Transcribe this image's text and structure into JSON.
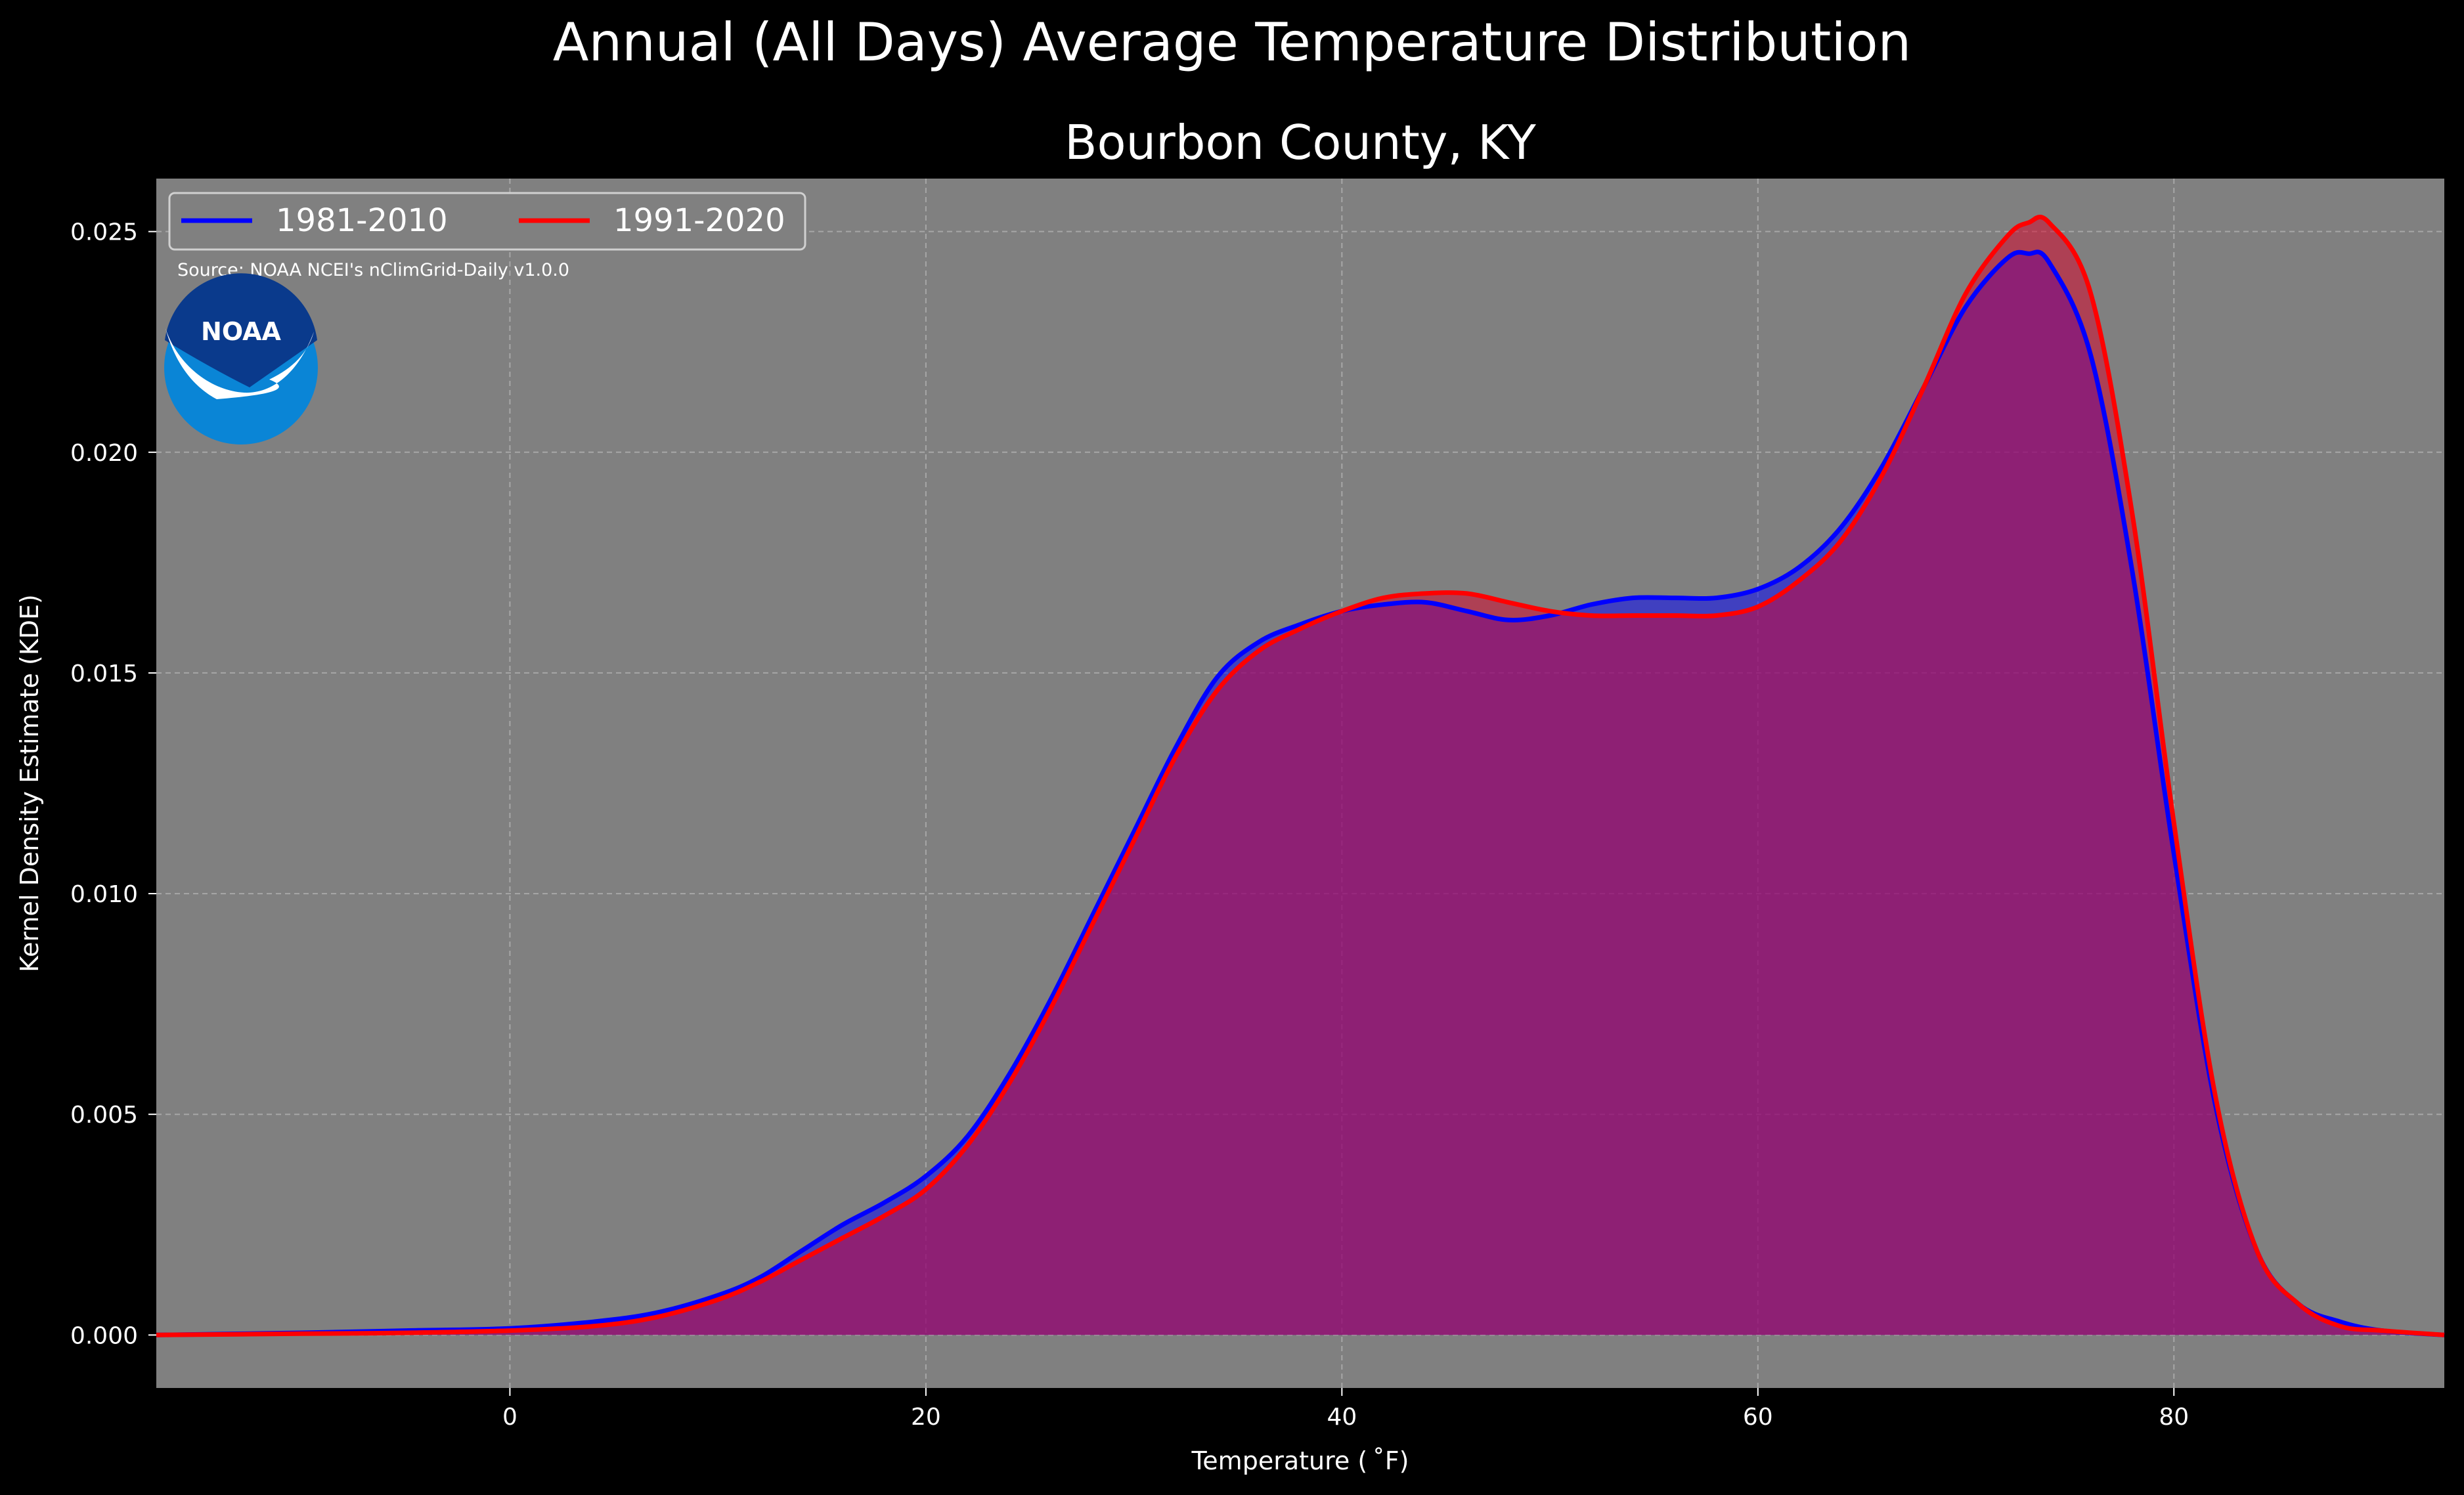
{
  "chart_data": {
    "type": "area",
    "suptitle": "Annual (All Days) Average Temperature Distribution",
    "title": "Bourbon County, KY",
    "xlabel": "Temperature ($^\\circ$F)",
    "xlabel_display": "Temperature ( ˚F)",
    "ylabel": "Kernel Density Estimate (KDE)",
    "source_note": "Source: NOAA NCEI's nClimGrid-Daily v1.0.0",
    "logo_text": "NOAA",
    "xlim": [
      -17,
      93
    ],
    "ylim": [
      -0.0012,
      0.0262
    ],
    "x_ticks": [
      0,
      20,
      40,
      60,
      80
    ],
    "x_tick_labels": [
      "0",
      "20",
      "40",
      "60",
      "80"
    ],
    "y_ticks": [
      0.0,
      0.005,
      0.01,
      0.015,
      0.02,
      0.025
    ],
    "y_tick_labels": [
      "0.000",
      "0.005",
      "0.010",
      "0.015",
      "0.020",
      "0.025"
    ],
    "grid": true,
    "legend_position": "top-left",
    "colors": {
      "background": "#000000",
      "plot_bg": "#808080",
      "series1": "#0000ff",
      "series2": "#ff0000",
      "series1_fill": "rgba(0,0,255,0.5)",
      "series2_fill": "rgba(220,0,40,0.5)",
      "grid": "#b4b4b4"
    },
    "series": [
      {
        "name": "1981-2010",
        "color": "#0000ff",
        "x": [
          -17,
          -10,
          -5,
          0,
          4,
          7,
          10,
          12,
          14,
          16,
          18,
          20,
          22,
          24,
          26,
          28,
          30,
          32,
          34,
          36,
          38,
          40,
          42,
          44,
          46,
          48,
          50,
          52,
          54,
          56,
          58,
          60,
          62,
          64,
          66,
          68,
          70,
          72,
          73,
          74,
          76,
          78,
          80,
          82,
          84,
          86,
          88,
          90,
          93
        ],
        "y": [
          0.0,
          5e-05,
          0.0001,
          0.00015,
          0.0003,
          0.0005,
          0.0009,
          0.0013,
          0.0019,
          0.0025,
          0.003,
          0.0036,
          0.0045,
          0.0059,
          0.0076,
          0.0095,
          0.0114,
          0.0133,
          0.0149,
          0.0157,
          0.0161,
          0.0164,
          0.01655,
          0.0166,
          0.0164,
          0.0162,
          0.0163,
          0.01655,
          0.0167,
          0.0167,
          0.0167,
          0.0169,
          0.0174,
          0.0183,
          0.0197,
          0.0215,
          0.0233,
          0.0244,
          0.0245,
          0.0243,
          0.0222,
          0.0173,
          0.0109,
          0.0052,
          0.0019,
          0.0007,
          0.0003,
          0.0001,
          0.0
        ]
      },
      {
        "name": "1991-2020",
        "color": "#ff0000",
        "x": [
          -17,
          -10,
          -5,
          0,
          4,
          7,
          10,
          12,
          14,
          16,
          18,
          20,
          22,
          24,
          26,
          28,
          30,
          32,
          34,
          36,
          38,
          40,
          42,
          44,
          46,
          48,
          50,
          52,
          54,
          56,
          58,
          60,
          62,
          64,
          66,
          68,
          70,
          72,
          73,
          74,
          76,
          78,
          80,
          82,
          84,
          86,
          88,
          90,
          93
        ],
        "y": [
          0.0,
          3e-05,
          5e-05,
          0.0001,
          0.0002,
          0.0004,
          0.0008,
          0.0012,
          0.0017,
          0.0022,
          0.0027,
          0.0033,
          0.0043,
          0.0057,
          0.0074,
          0.0093,
          0.0112,
          0.0131,
          0.0146,
          0.0155,
          0.016,
          0.0164,
          0.0167,
          0.0168,
          0.0168,
          0.0166,
          0.0164,
          0.0163,
          0.0163,
          0.0163,
          0.0163,
          0.0165,
          0.0171,
          0.018,
          0.0195,
          0.0215,
          0.0236,
          0.0249,
          0.0252,
          0.0252,
          0.0236,
          0.0186,
          0.0116,
          0.0054,
          0.0019,
          0.0007,
          0.0002,
          0.0001,
          0.0
        ]
      }
    ]
  }
}
